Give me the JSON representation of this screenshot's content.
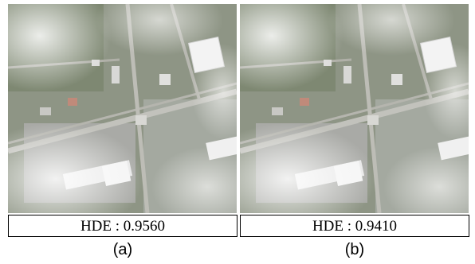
{
  "panels": [
    {
      "caption": "HDE : 0.9560",
      "label": "(a)"
    },
    {
      "caption": "HDE : 0.9410",
      "label": "(b)"
    }
  ]
}
